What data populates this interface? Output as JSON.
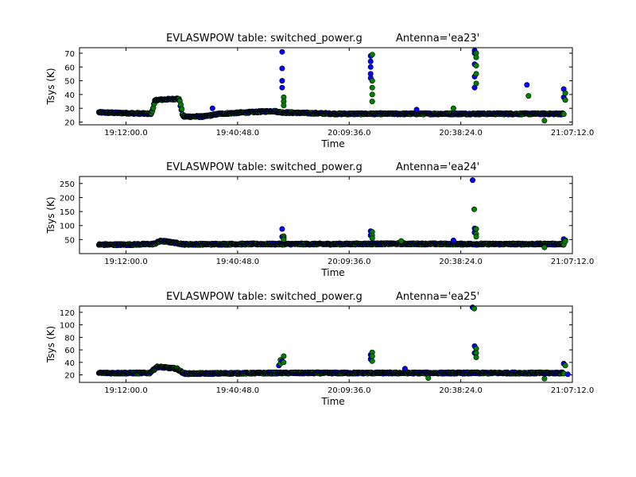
{
  "marker_colors": {
    "series_1": "#0000ff",
    "series_2": "#008000",
    "edge": "#000000"
  },
  "chart_data": [
    {
      "type": "scatter",
      "title_left": "EVLASWPOW table: switched_power.g",
      "title_right": "Antenna='ea23'",
      "xlabel": "Time",
      "ylabel": "Tsys (K)",
      "grid": false,
      "legend": "none",
      "xlim": [
        "19:00:00",
        "21:07:12"
      ],
      "ylim": [
        18,
        74
      ],
      "x_ticks": [
        "19:12:00.0",
        "19:40:48.0",
        "20:09:36.0",
        "20:38:24.0",
        "21:07:12.0"
      ],
      "y_ticks": [
        20,
        30,
        40,
        50,
        60,
        70
      ],
      "baseline": [
        [
          "19:05:00",
          27
        ],
        [
          "19:18:30",
          26
        ],
        [
          "19:19:30",
          36
        ],
        [
          "19:25:40",
          37
        ],
        [
          "19:26:40",
          24
        ],
        [
          "19:32:00",
          24
        ],
        [
          "19:36:00",
          26
        ],
        [
          "19:50:00",
          28
        ],
        [
          "19:52:00",
          27
        ],
        [
          "20:06:00",
          26
        ],
        [
          "20:40:00",
          26
        ],
        [
          "21:05:00",
          26
        ]
      ],
      "spikes": [
        {
          "x": "19:52:30",
          "series_1": [
            71,
            59,
            50,
            45
          ],
          "series_2": [
            38,
            35,
            32
          ]
        },
        {
          "x": "20:15:20",
          "series_1": [
            68,
            64,
            60,
            55,
            52
          ],
          "series_2": [
            69,
            50,
            45,
            40,
            35
          ]
        },
        {
          "x": "20:42:10",
          "series_1": [
            72,
            70,
            62,
            53,
            45
          ],
          "series_2": [
            70,
            67,
            61,
            55,
            48
          ]
        },
        {
          "x": "20:55:40",
          "series_1": [
            47
          ],
          "series_2": [
            39
          ]
        },
        {
          "x": "21:05:10",
          "series_1": [
            44,
            38
          ],
          "series_2": [
            41,
            36
          ]
        }
      ],
      "outliers": [
        [
          "21:00:00",
          21
        ],
        [
          "19:34:20",
          30
        ],
        [
          "20:36:30",
          30
        ],
        [
          "20:27:00",
          29
        ]
      ]
    },
    {
      "type": "scatter",
      "title_left": "EVLASWPOW table: switched_power.g",
      "title_right": "Antenna='ea24'",
      "xlabel": "Time",
      "ylabel": "Tsys (K)",
      "grid": false,
      "legend": "none",
      "xlim": [
        "19:00:00",
        "21:07:12"
      ],
      "ylim": [
        0,
        275
      ],
      "x_ticks": [
        "19:12:00.0",
        "19:40:48.0",
        "20:09:36.0",
        "20:38:24.0",
        "21:07:12.0"
      ],
      "y_ticks": [
        50,
        100,
        150,
        200,
        250
      ],
      "baseline": [
        [
          "19:05:00",
          32
        ],
        [
          "19:12:00",
          32
        ],
        [
          "19:19:00",
          34
        ],
        [
          "19:21:00",
          45
        ],
        [
          "19:24:00",
          40
        ],
        [
          "19:27:00",
          33
        ],
        [
          "19:40:00",
          34
        ],
        [
          "20:06:00",
          34
        ],
        [
          "20:20:00",
          35
        ],
        [
          "20:40:00",
          34
        ],
        [
          "21:05:00",
          34
        ]
      ],
      "spikes": [
        {
          "x": "19:52:30",
          "series_1": [
            88,
            60
          ],
          "series_2": [
            62,
            55,
            50
          ]
        },
        {
          "x": "20:15:20",
          "series_1": [
            80,
            65
          ],
          "series_2": [
            77,
            65,
            55
          ]
        },
        {
          "x": "20:41:40",
          "series_1": [
            262
          ],
          "series_2": [
            158
          ]
        },
        {
          "x": "20:42:10",
          "series_1": [
            90,
            75
          ],
          "series_2": [
            88,
            70,
            60
          ]
        },
        {
          "x": "21:05:10",
          "series_1": [
            52
          ],
          "series_2": [
            48,
            44
          ]
        }
      ],
      "outliers": [
        [
          "21:00:00",
          22
        ],
        [
          "20:36:30",
          47
        ],
        [
          "20:23:00",
          45
        ]
      ]
    },
    {
      "type": "scatter",
      "title_left": "EVLASWPOW table: switched_power.g",
      "title_right": "Antenna='ea25'",
      "xlabel": "Time",
      "ylabel": "Tsys (K)",
      "grid": false,
      "legend": "none",
      "xlim": [
        "19:00:00",
        "21:07:12"
      ],
      "ylim": [
        8,
        130
      ],
      "x_ticks": [
        "19:12:00.0",
        "19:40:48.0",
        "20:09:36.0",
        "20:38:24.0",
        "21:07:12.0"
      ],
      "y_ticks": [
        20,
        40,
        60,
        80,
        100,
        120
      ],
      "baseline": [
        [
          "19:05:00",
          23
        ],
        [
          "19:18:00",
          23
        ],
        [
          "19:20:00",
          33
        ],
        [
          "19:25:00",
          30
        ],
        [
          "19:27:00",
          22
        ],
        [
          "19:50:00",
          23
        ],
        [
          "20:10:00",
          23
        ],
        [
          "20:40:00",
          23
        ],
        [
          "21:05:00",
          23
        ]
      ],
      "spikes": [
        {
          "x": "19:51:40",
          "series_1": [
            35
          ],
          "series_2": [
            44,
            38
          ]
        },
        {
          "x": "19:52:30",
          "series_1": [
            42
          ],
          "series_2": [
            50,
            40
          ]
        },
        {
          "x": "20:15:20",
          "series_1": [
            52,
            45
          ],
          "series_2": [
            56,
            50,
            42
          ]
        },
        {
          "x": "20:41:40",
          "series_1": [
            128
          ],
          "series_2": [
            126
          ]
        },
        {
          "x": "20:42:10",
          "series_1": [
            66,
            55
          ],
          "series_2": [
            62,
            55,
            48
          ]
        },
        {
          "x": "21:05:10",
          "series_1": [
            38
          ],
          "series_2": [
            35
          ]
        }
      ],
      "outliers": [
        [
          "21:00:00",
          14
        ],
        [
          "21:06:00",
          21
        ],
        [
          "20:30:00",
          15
        ],
        [
          "20:24:00",
          30
        ]
      ]
    }
  ]
}
